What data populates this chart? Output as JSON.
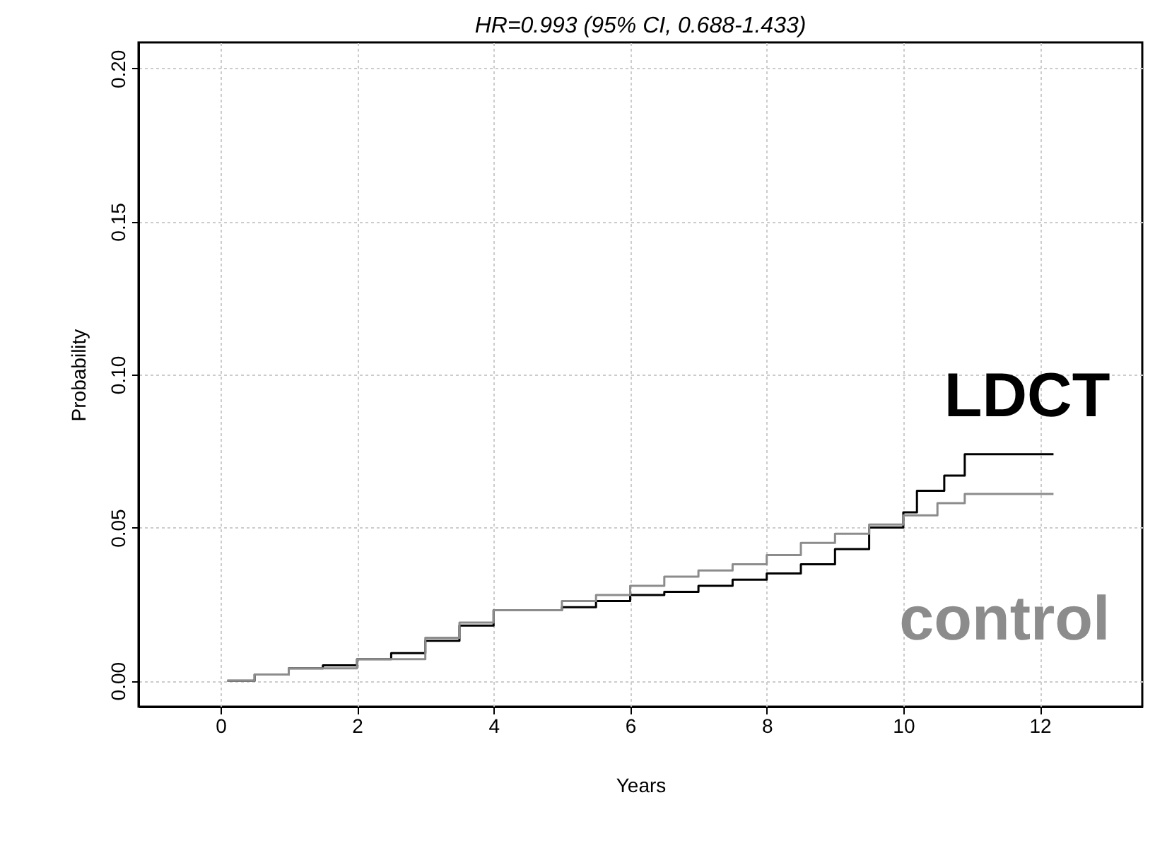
{
  "chart_data": {
    "type": "step",
    "title": "HR=0.993 (95% CI, 0.688-1.433)",
    "xlabel": "Years",
    "ylabel": "Probability",
    "xlim": [
      -1.2,
      13.5
    ],
    "ylim": [
      -0.0085,
      0.2085
    ],
    "xticks": [
      0,
      2,
      4,
      6,
      8,
      10,
      12
    ],
    "yticks": [
      {
        "value": 0,
        "label": "0.00"
      },
      {
        "value": 0.05,
        "label": "0.05"
      },
      {
        "value": 0.1,
        "label": "0.10"
      },
      {
        "value": 0.15,
        "label": "0.15"
      },
      {
        "value": 0.2,
        "label": "0.20"
      }
    ],
    "grid": true,
    "line_style": "solid",
    "series": [
      {
        "name": "LDCT",
        "color": "#000000",
        "x": [
          0.1,
          0.5,
          1,
          1.5,
          2,
          2.5,
          3,
          3.5,
          4,
          5,
          5.5,
          6,
          6.5,
          7,
          7.5,
          8,
          8.5,
          9,
          9.5,
          10,
          10.2,
          10.6,
          10.9,
          12.2
        ],
        "values": [
          0,
          0.002,
          0.004,
          0.005,
          0.007,
          0.009,
          0.013,
          0.018,
          0.023,
          0.024,
          0.026,
          0.028,
          0.029,
          0.031,
          0.033,
          0.035,
          0.038,
          0.043,
          0.05,
          0.055,
          0.062,
          0.067,
          0.074,
          0.074
        ]
      },
      {
        "name": "control",
        "color": "#8c8c8c",
        "x": [
          0.1,
          0.5,
          1,
          2,
          3,
          3.5,
          4,
          5,
          5.5,
          6,
          6.5,
          7,
          7.5,
          8,
          8.5,
          9,
          9.5,
          10,
          10.5,
          10.9,
          12.2
        ],
        "values": [
          0,
          0.002,
          0.004,
          0.007,
          0.014,
          0.019,
          0.023,
          0.026,
          0.028,
          0.031,
          0.034,
          0.036,
          0.038,
          0.041,
          0.045,
          0.048,
          0.051,
          0.054,
          0.058,
          0.061,
          0.061
        ]
      }
    ]
  }
}
